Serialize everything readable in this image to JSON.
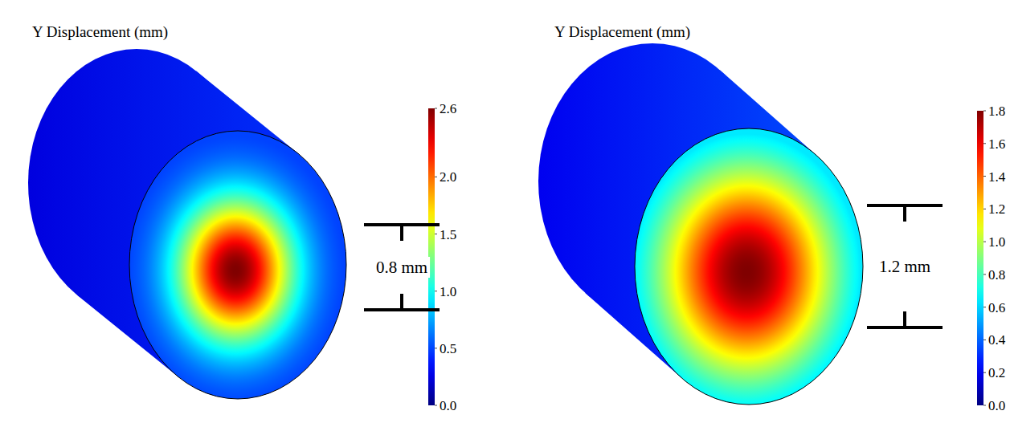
{
  "chart_data": [
    {
      "type": "contour",
      "title": "Y Displacement (mm)",
      "peak": 2.6,
      "colorbar_range": [
        0,
        2.6
      ],
      "colorbar_ticks": [
        {
          "value": 0,
          "label": "0.0"
        },
        0.5,
        {
          "value": 1,
          "label": "1.0"
        },
        1.5,
        {
          "value": 2,
          "label": "2.0"
        },
        2.6
      ],
      "annotation": "0.8 mm"
    },
    {
      "type": "contour",
      "title": "Y Displacement (mm)",
      "peak": 1.8,
      "colorbar_range": [
        0,
        1.8
      ],
      "colorbar_ticks": [
        {
          "value": 0,
          "label": "0.0"
        },
        0.2,
        0.4,
        0.6,
        0.8,
        {
          "value": 1,
          "label": "1.0"
        },
        1.2,
        1.4,
        1.6,
        1.8
      ],
      "annotation": "1.2 mm"
    }
  ]
}
